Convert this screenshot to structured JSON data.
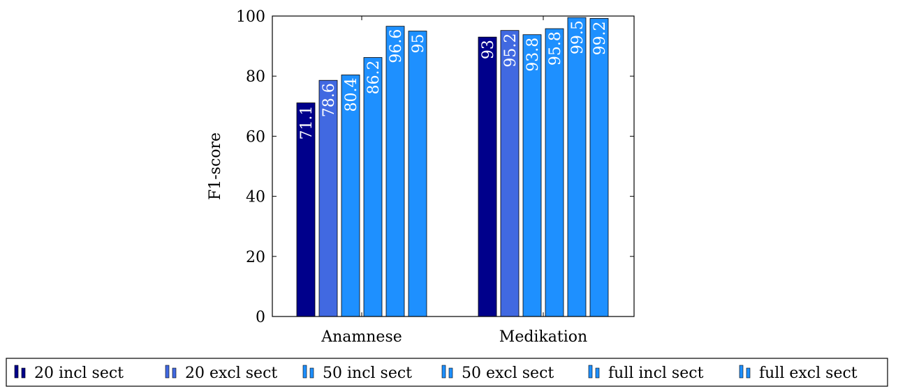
{
  "chart_data": {
    "type": "bar",
    "categories": [
      "Anamnese",
      "Medikation"
    ],
    "series": [
      {
        "name": "20 incl sect",
        "values": [
          71.1,
          93
        ],
        "color": "#00008B"
      },
      {
        "name": "20 excl sect",
        "values": [
          78.6,
          95.2
        ],
        "color": "#4169E1"
      },
      {
        "name": "50 incl sect",
        "values": [
          80.4,
          93.8
        ],
        "color": "#1E90FF"
      },
      {
        "name": "50 excl sect",
        "values": [
          86.2,
          95.8
        ],
        "color": "#1E90FF"
      },
      {
        "name": "full incl sect",
        "values": [
          96.6,
          99.5
        ],
        "color": "#1E90FF"
      },
      {
        "name": "full excl sect",
        "values": [
          95,
          99.2
        ],
        "color": "#1E90FF"
      }
    ],
    "title": "",
    "xlabel": "",
    "ylabel": "F1-score",
    "ylim": [
      0,
      100
    ],
    "yticks": [
      0,
      20,
      40,
      60,
      80,
      100
    ],
    "legend_position": "bottom",
    "data_labels": true,
    "grid": false
  }
}
